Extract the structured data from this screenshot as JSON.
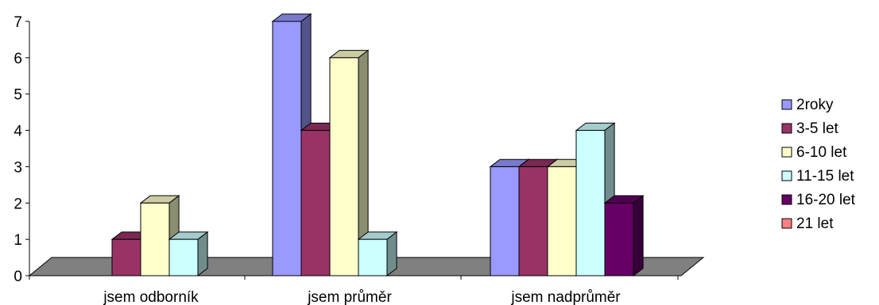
{
  "chart_data": {
    "type": "bar",
    "title": "",
    "xlabel": "",
    "ylabel": "",
    "ylim": [
      0,
      7
    ],
    "yticks": [
      "0",
      "1",
      "2",
      "3",
      "4",
      "5",
      "6",
      "7"
    ],
    "categories": [
      "jsem odborník",
      "jsem průměr",
      "jsem nadprůměr"
    ],
    "series": [
      {
        "name": "2roky",
        "color": "#9999ff",
        "values": [
          0,
          7,
          3
        ]
      },
      {
        "name": "3-5 let",
        "color": "#993366",
        "values": [
          1,
          4,
          3
        ]
      },
      {
        "name": "6-10 let",
        "color": "#ffffcc",
        "values": [
          2,
          6,
          3
        ]
      },
      {
        "name": "11-15 let",
        "color": "#ccffff",
        "values": [
          1,
          1,
          4
        ]
      },
      {
        "name": "16-20 let",
        "color": "#660066",
        "values": [
          0,
          0,
          2
        ]
      },
      {
        "name": "21 let",
        "color": "#ff8080",
        "values": [
          0,
          0,
          0
        ]
      }
    ],
    "floor_color": "#808080",
    "grid": false,
    "legend_position": "right",
    "style": "3d-clustered-column"
  }
}
